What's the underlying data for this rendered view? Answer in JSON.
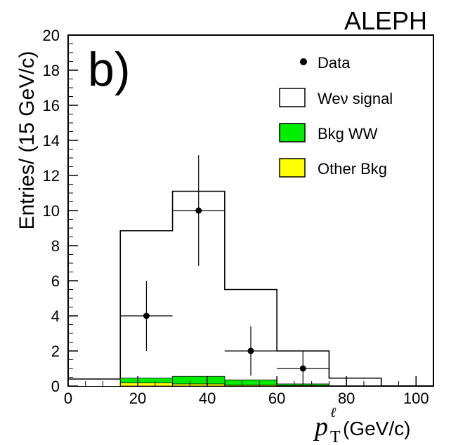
{
  "chart_data": {
    "type": "histogram",
    "experiment_label": "ALEPH",
    "panel_label": "b)",
    "ylabel": "Entries/ (15 GeV/c)",
    "xlabel_symbol": "p",
    "xlabel_superscript": "ℓ",
    "xlabel_subscript": "T",
    "xlabel_unit": "(GeV/c)",
    "xlim": [
      0,
      105
    ],
    "ylim": [
      0,
      20
    ],
    "x_ticks": [
      "0",
      "20",
      "40",
      "60",
      "80",
      "100"
    ],
    "x_tick_values": [
      0,
      20,
      40,
      60,
      80,
      100
    ],
    "y_ticks": [
      "0",
      "2",
      "4",
      "6",
      "8",
      "10",
      "12",
      "14",
      "16",
      "18",
      "20"
    ],
    "y_tick_values": [
      0,
      2,
      4,
      6,
      8,
      10,
      12,
      14,
      16,
      18,
      20
    ],
    "bin_edges": [
      0,
      15,
      30,
      45,
      60,
      75,
      90,
      105
    ],
    "signal_stack_totals": [
      0.4,
      8.85,
      11.1,
      5.5,
      2.0,
      0.45,
      0.0
    ],
    "bkg_ww": [
      0.0,
      0.45,
      0.55,
      0.35,
      0.12,
      0.02,
      0.0
    ],
    "other_bkg": [
      0.0,
      0.18,
      0.12,
      0.05,
      0.03,
      0.0,
      0.0
    ],
    "data_points": [
      {
        "x": 22.5,
        "y": 4,
        "yerr_low": 2.0,
        "yerr_high": 2.0
      },
      {
        "x": 37.5,
        "y": 10,
        "yerr_low": 3.15,
        "yerr_high": 3.15
      },
      {
        "x": 52.5,
        "y": 2,
        "yerr_low": 1.4,
        "yerr_high": 1.4
      },
      {
        "x": 67.5,
        "y": 1,
        "yerr_low": 1.0,
        "yerr_high": 1.0
      }
    ],
    "legend": [
      {
        "label": "Data",
        "kind": "marker"
      },
      {
        "label": "Weν signal",
        "kind": "box",
        "color": "#ffffff"
      },
      {
        "label": "Bkg WW",
        "kind": "box",
        "color": "#00ee00"
      },
      {
        "label": "Other Bkg",
        "kind": "box",
        "color": "#ffff00"
      }
    ],
    "legend_position": "top-right",
    "colors": {
      "bkg_ww": "#00ee00",
      "other_bkg": "#ffff00",
      "signal": "#ffffff",
      "line": "#000000"
    },
    "grid": false
  }
}
